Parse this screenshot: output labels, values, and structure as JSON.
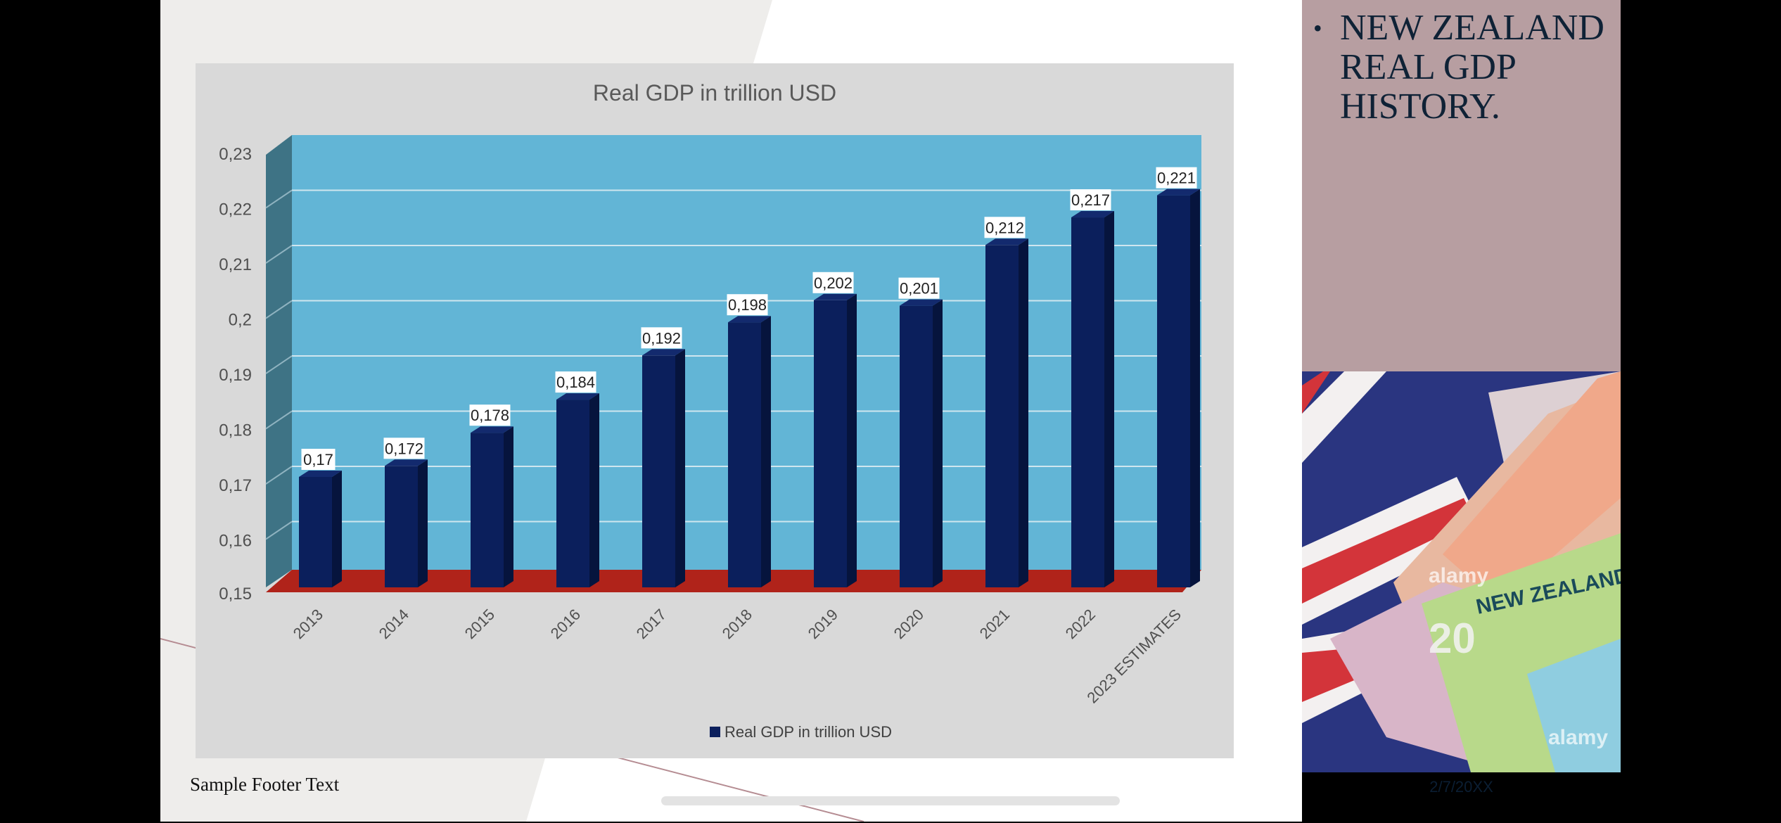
{
  "slide": {
    "footer": "Sample Footer Text",
    "date": "2/7/20XX",
    "side_title": "NEW ZEALAND REAL GDP HISTORY.",
    "photo": {
      "description_icon": "new-zealand-banknotes-and-flag-photo",
      "watermark": "alamy"
    }
  },
  "colors": {
    "bar": "#0b1f5c",
    "plot_wall": "#62b5d6",
    "floor": "#b0231a",
    "side_panel": "#b79ea1",
    "chart_bg": "#d9d9d9"
  },
  "chart_data": {
    "type": "bar",
    "title": "Real GDP in trillion USD",
    "categories": [
      "2013",
      "2014",
      "2015",
      "2016",
      "2017",
      "2018",
      "2019",
      "2020",
      "2021",
      "2022",
      "2023 ESTIMATES"
    ],
    "series": [
      {
        "name": "Real GDP in trillion USD",
        "values": [
          0.17,
          0.172,
          0.178,
          0.184,
          0.192,
          0.198,
          0.202,
          0.201,
          0.212,
          0.217,
          0.221
        ],
        "labels": [
          "0,17",
          "0,172",
          "0,178",
          "0,184",
          "0,192",
          "0,198",
          "0,202",
          "0,201",
          "0,212",
          "0,217",
          "0,221"
        ]
      }
    ],
    "ylim": [
      0.15,
      0.23
    ],
    "yticks": [
      "0,15",
      "0,16",
      "0,17",
      "0,18",
      "0,19",
      "0,2",
      "0,21",
      "0,22",
      "0,23"
    ],
    "grid": true,
    "legend": "bottom",
    "style": "3d-column"
  }
}
